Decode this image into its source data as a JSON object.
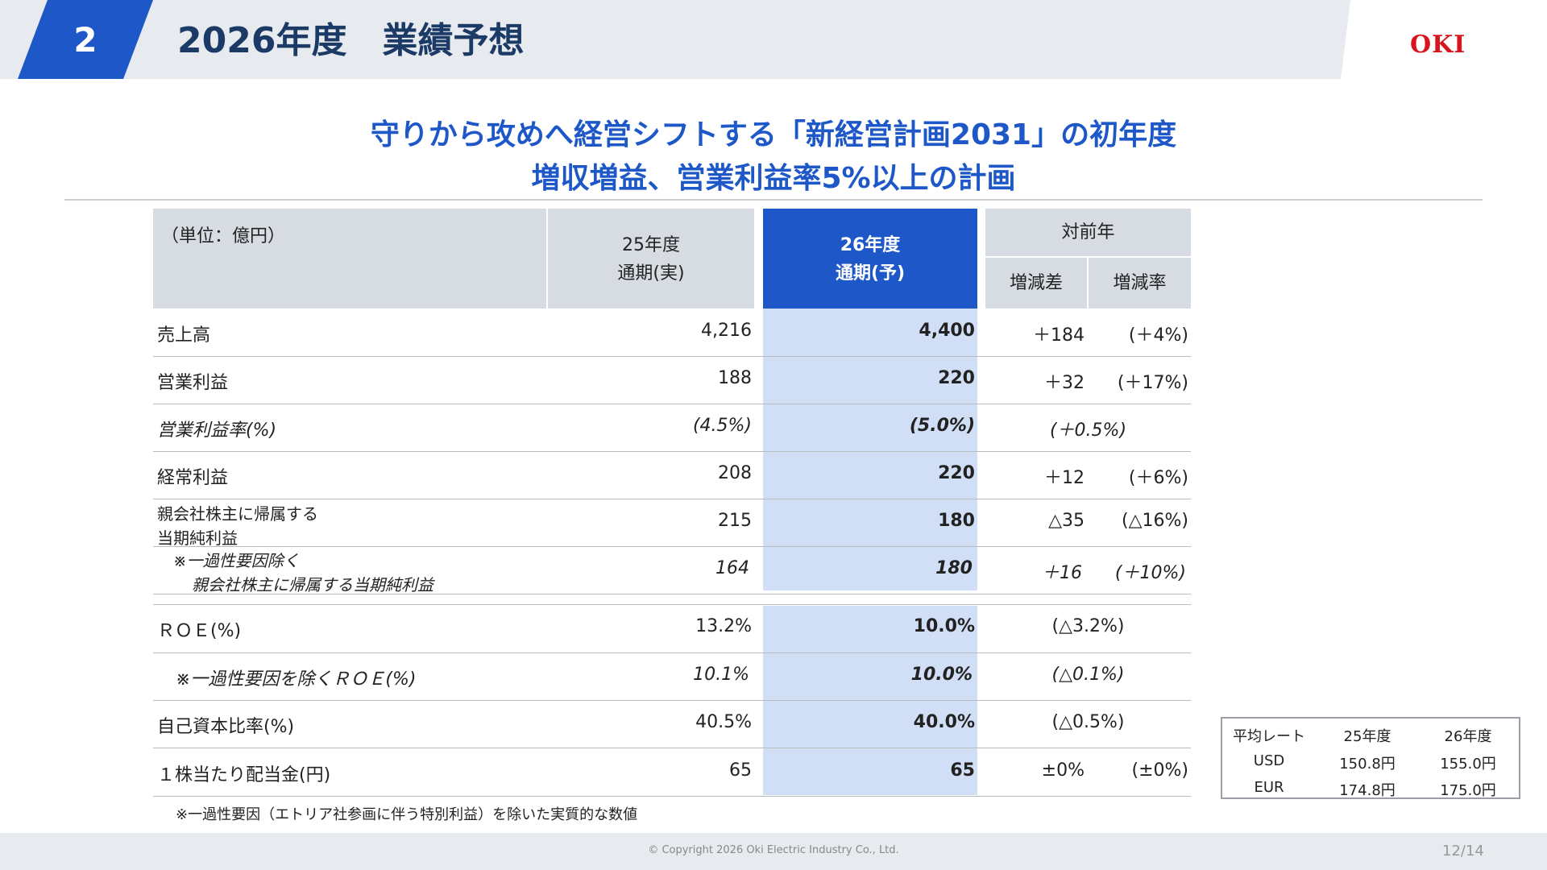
{
  "header": {
    "section_number": "2",
    "title": "2026年度　業績予想",
    "logo": "OKI"
  },
  "headline": {
    "line1": "守りから攻めへ経営シフトする「新経営計画2031」の初年度",
    "line2": "増収増益、営業利益率5%以上の計画"
  },
  "table": {
    "unit_label": "（単位：億円）",
    "col_prev_line1": "25年度",
    "col_prev_line2": "通期(実)",
    "col_curr_line1": "26年度",
    "col_curr_line2": "通期(予)",
    "col_yoy": "対前年",
    "col_diff": "増減差",
    "col_rate": "増減率",
    "rows": [
      {
        "label": "売上高",
        "prev": "4,216",
        "curr": "4,400",
        "diff": "＋184",
        "rate": "(＋4%)"
      },
      {
        "label": "営業利益",
        "prev": "188",
        "curr": "220",
        "diff": "＋32",
        "rate": "(＋17%)"
      },
      {
        "label": "営業利益率(%)",
        "prev": "(4.5%)",
        "curr": "(5.0%)",
        "diff": "(＋0.5%)",
        "rate": ""
      },
      {
        "label": "経常利益",
        "prev": "208",
        "curr": "220",
        "diff": "＋12",
        "rate": "(＋6%)"
      },
      {
        "label_line1": "親会社株主に帰属する",
        "label_line2": "当期純利益",
        "prev": "215",
        "curr": "180",
        "diff": "△35",
        "rate": "(△16%)"
      },
      {
        "label_line1": "※一過性要因除く",
        "label_line2": "親会社株主に帰属する当期純利益",
        "prev": "164",
        "curr": "180",
        "diff": "＋16",
        "rate": "(＋10%)"
      },
      {
        "label": "ＲＯＥ(%)",
        "prev": "13.2%",
        "curr": "10.0%",
        "diff": "(△3.2%)",
        "rate": ""
      },
      {
        "label": "※一過性要因を除くＲＯＥ(%)",
        "prev": "10.1%",
        "curr": "10.0%",
        "diff": "(△0.1%)",
        "rate": ""
      },
      {
        "label": "自己資本比率(%)",
        "prev": "40.5%",
        "curr": "40.0%",
        "diff": "(△0.5%)",
        "rate": ""
      },
      {
        "label": "１株当たり配当金(円)",
        "prev": "65",
        "curr": "65",
        "diff": "±0%",
        "rate": "(±0%)"
      }
    ]
  },
  "rates": {
    "h_label": "平均レート",
    "h_prev": "25年度",
    "h_curr": "26年度",
    "usd_label": "USD",
    "usd_prev": "150.8円",
    "usd_curr": "155.0円",
    "eur_label": "EUR",
    "eur_prev": "174.8円",
    "eur_curr": "175.0円"
  },
  "footnote": "※一過性要因（エトリア社参画に伴う特別利益）を除いた実質的な数値",
  "copyright": "© Copyright 2026 Oki Electric Industry Co., Ltd.",
  "page_number": "12/14"
}
